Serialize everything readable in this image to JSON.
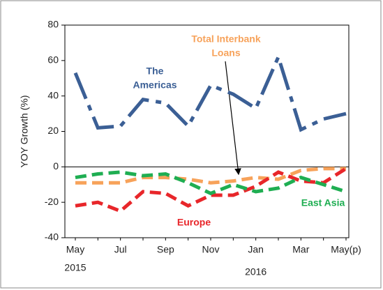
{
  "chart_data": {
    "type": "line",
    "y_label": "YOY Growth (%)",
    "categories": [
      "May",
      null,
      "Jul",
      null,
      "Sep",
      null,
      "Nov",
      null,
      "Jan",
      null,
      "Mar",
      null,
      "May(p)"
    ],
    "years": [
      "2015",
      "2016"
    ],
    "ylim": [
      -40,
      80
    ],
    "yticks": [
      -40,
      -20,
      0,
      20,
      40,
      60,
      80
    ],
    "series": [
      {
        "name": [
          "The",
          "Americas"
        ],
        "color": "#3b5f95",
        "dash": "dashdot",
        "values": [
          53,
          22,
          23,
          38,
          36,
          23,
          46,
          41,
          33,
          62,
          21,
          27,
          30
        ]
      },
      {
        "name": [
          "Total Interbank",
          "Loans"
        ],
        "color": "#f7a25a",
        "dash": "dash",
        "values": [
          -9,
          -9,
          -9,
          -6,
          -6,
          -7,
          -9,
          -8,
          -6,
          -7,
          -2,
          -1,
          -1
        ]
      },
      {
        "name": [
          "Europe"
        ],
        "color": "#e8262a",
        "dash": "dash",
        "values": [
          -22,
          -20,
          -25,
          -14,
          -15,
          -22,
          -16,
          -16,
          -11,
          -3,
          -8,
          -9,
          -1
        ]
      },
      {
        "name": [
          "East Asia"
        ],
        "color": "#1fae52",
        "dash": "dash",
        "values": [
          -6,
          -4,
          -3,
          -5,
          -4,
          -9,
          -15,
          -10,
          -14,
          -12,
          -6,
          -10,
          -14
        ]
      }
    ]
  }
}
